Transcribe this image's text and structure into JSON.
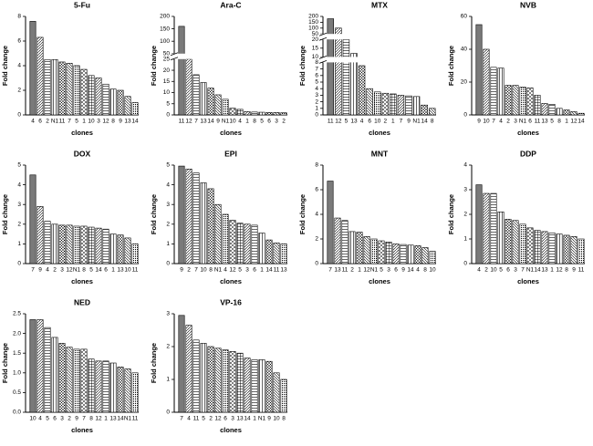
{
  "chart_data": [
    {
      "type": "bar",
      "title": "5-Fu",
      "ylabel": "Fold change",
      "xlabel": "clones",
      "categories": [
        "4",
        "6",
        "2",
        "N1",
        "11",
        "7",
        "5",
        "1",
        "10",
        "3",
        "12",
        "8",
        "9",
        "13",
        "14"
      ],
      "values": [
        7.6,
        6.3,
        4.5,
        4.5,
        4.3,
        4.2,
        4.0,
        3.7,
        3.2,
        3.0,
        2.5,
        2.1,
        2.0,
        1.5,
        1.0
      ],
      "ylim": [
        0,
        8
      ],
      "yticks": [
        0,
        2,
        4,
        6,
        8
      ]
    },
    {
      "type": "bar",
      "title": "Ara-C",
      "ylabel": "Fold change",
      "xlabel": "clones",
      "categories": [
        "11",
        "12",
        "7",
        "13",
        "14",
        "9",
        "N1",
        "10",
        "4",
        "1",
        "8",
        "5",
        "6",
        "3",
        "2"
      ],
      "values": [
        160,
        25,
        18,
        14.5,
        12,
        9,
        7,
        3,
        2.5,
        1.5,
        1.3,
        1.2,
        1.1,
        1.1,
        1.0
      ],
      "ylim": [
        0,
        200
      ],
      "ybreaks": [
        [
          25,
          50
        ]
      ],
      "yticks": [
        0,
        5,
        10,
        15,
        20,
        25,
        50,
        100,
        150,
        200
      ]
    },
    {
      "type": "bar",
      "title": "MTX",
      "ylabel": "Fold change",
      "xlabel": "clones",
      "categories": [
        "11",
        "12",
        "5",
        "13",
        "4",
        "6",
        "10",
        "2",
        "1",
        "7",
        "9",
        "N1",
        "14",
        "8"
      ],
      "values": [
        180,
        100,
        30,
        12,
        7.5,
        4,
        3.5,
        3.3,
        3.2,
        3,
        2.9,
        2.8,
        1.5,
        1
      ],
      "ylim": [
        0,
        200
      ],
      "ybreaks": [
        [
          8,
          10
        ],
        [
          20,
          50
        ]
      ],
      "yticks": [
        0,
        1,
        2,
        3,
        4,
        5,
        6,
        7,
        8,
        10,
        15,
        20,
        50,
        100,
        150,
        200
      ]
    },
    {
      "type": "bar",
      "title": "NVB",
      "ylabel": "Fold change",
      "xlabel": "clones",
      "categories": [
        "9",
        "10",
        "7",
        "4",
        "2",
        "3",
        "N1",
        "6",
        "11",
        "13",
        "5",
        "8",
        "1",
        "12",
        "14"
      ],
      "values": [
        55,
        40,
        29,
        28.5,
        18,
        18,
        17,
        16.5,
        12,
        7,
        6.5,
        4,
        3,
        2,
        1
      ],
      "ylim": [
        0,
        60
      ],
      "yticks": [
        0,
        20,
        40,
        60
      ]
    },
    {
      "type": "bar",
      "title": "DOX",
      "ylabel": "Fold change",
      "xlabel": "clones",
      "categories": [
        "7",
        "9",
        "4",
        "2",
        "3",
        "12",
        "N1",
        "8",
        "5",
        "14",
        "6",
        "1",
        "13",
        "10",
        "11"
      ],
      "values": [
        4.5,
        2.9,
        2.15,
        2.0,
        1.95,
        1.95,
        1.9,
        1.9,
        1.85,
        1.8,
        1.75,
        1.5,
        1.45,
        1.3,
        1.0
      ],
      "ylim": [
        0,
        5
      ],
      "yticks": [
        0,
        1,
        2,
        3,
        4,
        5
      ]
    },
    {
      "type": "bar",
      "title": "EPI",
      "ylabel": "Fold change",
      "xlabel": "clones",
      "categories": [
        "9",
        "2",
        "7",
        "10",
        "8",
        "N1",
        "4",
        "12",
        "5",
        "3",
        "6",
        "1",
        "14",
        "11",
        "13"
      ],
      "values": [
        4.95,
        4.8,
        4.6,
        4.1,
        3.8,
        3.0,
        2.5,
        2.2,
        2.05,
        2.0,
        1.95,
        1.55,
        1.2,
        1.05,
        1.0
      ],
      "ylim": [
        0,
        5
      ],
      "yticks": [
        0,
        1,
        2,
        3,
        4,
        5
      ]
    },
    {
      "type": "bar",
      "title": "MNT",
      "ylabel": "Fold change",
      "xlabel": "clones",
      "categories": [
        "7",
        "13",
        "11",
        "2",
        "1",
        "12",
        "N1",
        "5",
        "3",
        "6",
        "9",
        "14",
        "4",
        "8",
        "10"
      ],
      "values": [
        6.7,
        3.7,
        3.5,
        2.6,
        2.55,
        2.2,
        2.0,
        1.85,
        1.75,
        1.6,
        1.55,
        1.5,
        1.45,
        1.3,
        1.0
      ],
      "ylim": [
        0,
        8
      ],
      "yticks": [
        0,
        2,
        4,
        6,
        8
      ]
    },
    {
      "type": "bar",
      "title": "DDP",
      "ylabel": "Fold change",
      "xlabel": "clones",
      "categories": [
        "4",
        "2",
        "10",
        "5",
        "6",
        "3",
        "7",
        "N1",
        "14",
        "13",
        "1",
        "12",
        "8",
        "9",
        "11"
      ],
      "values": [
        3.2,
        2.85,
        2.85,
        2.1,
        1.8,
        1.75,
        1.6,
        1.45,
        1.35,
        1.3,
        1.25,
        1.2,
        1.15,
        1.1,
        1.0
      ],
      "ylim": [
        0,
        4
      ],
      "yticks": [
        0,
        1,
        2,
        3,
        4
      ]
    },
    {
      "type": "bar",
      "title": "NED",
      "ylabel": "Fold change",
      "xlabel": "clones",
      "categories": [
        "10",
        "4",
        "5",
        "6",
        "3",
        "2",
        "9",
        "7",
        "8",
        "12",
        "1",
        "13",
        "14",
        "N1",
        "11"
      ],
      "values": [
        2.35,
        2.35,
        2.15,
        1.9,
        1.75,
        1.65,
        1.6,
        1.6,
        1.35,
        1.3,
        1.3,
        1.25,
        1.15,
        1.1,
        1.0
      ],
      "ylim": [
        0,
        2.5
      ],
      "yticks": [
        {
          "value": 0,
          "label": "0.0"
        },
        0.5,
        {
          "value": 1,
          "label": "1.0"
        },
        1.5,
        {
          "value": 2,
          "label": "2.0"
        },
        2.5
      ]
    },
    {
      "type": "bar",
      "title": "VP-16",
      "ylabel": "Fold change",
      "xlabel": "clones",
      "categories": [
        "7",
        "4",
        "11",
        "5",
        "2",
        "12",
        "6",
        "3",
        "13",
        "14",
        "1",
        "N1",
        "9",
        "10",
        "8"
      ],
      "values": [
        2.95,
        2.65,
        2.2,
        2.1,
        2.0,
        1.95,
        1.9,
        1.85,
        1.8,
        1.65,
        1.6,
        1.6,
        1.55,
        1.2,
        1.0
      ],
      "ylim": [
        0,
        3
      ],
      "yticks": [
        0,
        1,
        2,
        3
      ]
    }
  ]
}
